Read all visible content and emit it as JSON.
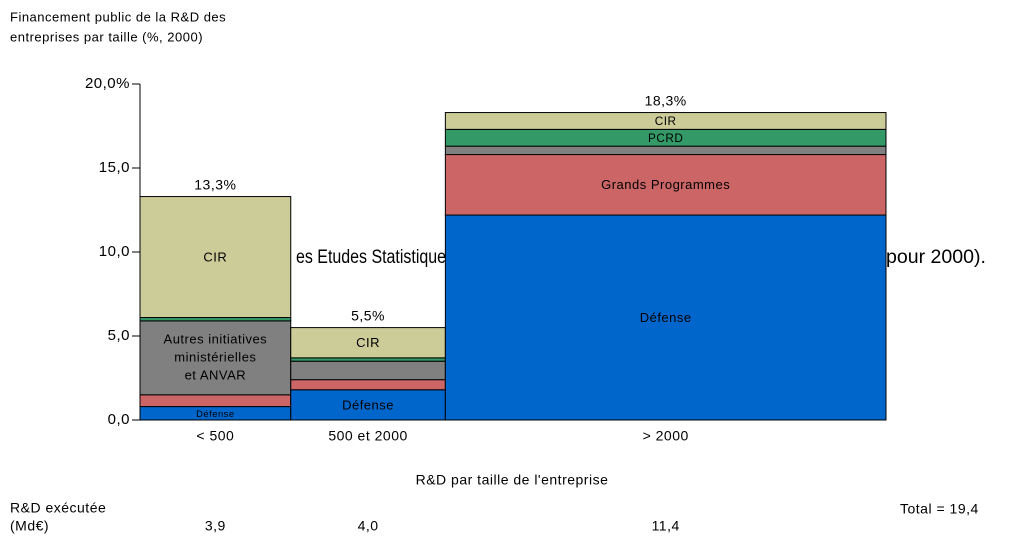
{
  "chart_data": {
    "type": "marimekko",
    "title": [
      "Financement public de la R&D des",
      "entreprises par taille (%, 2000)"
    ],
    "xlabel": "R&D par taille de l'entreprise",
    "categories": [
      "< 500",
      "500 et 2000",
      "> 2000"
    ],
    "widths": [
      3.9,
      4.0,
      11.4
    ],
    "width_labels": [
      "3,9",
      "4,0",
      "11,4"
    ],
    "width_title": [
      "R&D exécutée",
      "(Md€)"
    ],
    "total_text": "Total = 19,4",
    "totals": [
      13.3,
      5.5,
      18.3
    ],
    "total_labels": [
      "13,3%",
      "5,5%",
      "18,3%"
    ],
    "ylim": [
      0,
      20
    ],
    "yticks": [
      {
        "value": 0,
        "label": "0,0"
      },
      {
        "value": 5,
        "label": "5,0"
      },
      {
        "value": 10,
        "label": "10,0"
      },
      {
        "value": 15,
        "label": "15,0"
      },
      {
        "value": 20,
        "label": "20,0%"
      }
    ],
    "series": [
      {
        "color": "#0066cc",
        "label_color": "#ffffff",
        "values": [
          0.8,
          1.8,
          12.2
        ],
        "labels": [
          "Défense",
          "Défense",
          "Défense"
        ]
      },
      {
        "color": "#cc6666",
        "label_color": "#ffffff",
        "values": [
          0.7,
          0.6,
          3.6
        ],
        "labels": [
          null,
          null,
          "Grands Programmes"
        ]
      },
      {
        "color": "#808080",
        "label_color": "#ffffff",
        "values": [
          4.4,
          1.1,
          0.5
        ],
        "labels": [
          [
            "Autres initiatives",
            "ministérielles",
            "et ANVAR"
          ],
          null,
          null
        ]
      },
      {
        "color": "#339966",
        "label_color": "#ffffff",
        "values": [
          0.2,
          0.2,
          1.0
        ],
        "labels": [
          null,
          null,
          "PCRD"
        ]
      },
      {
        "color": "#cccc99",
        "label_color": "#000000",
        "values": [
          7.2,
          1.8,
          1.0
        ],
        "labels": [
          "CIR",
          "CIR",
          "CIR"
        ]
      }
    ],
    "overlay_text": [
      "es Etudes Statistiques",
      "pour 2000)."
    ]
  }
}
